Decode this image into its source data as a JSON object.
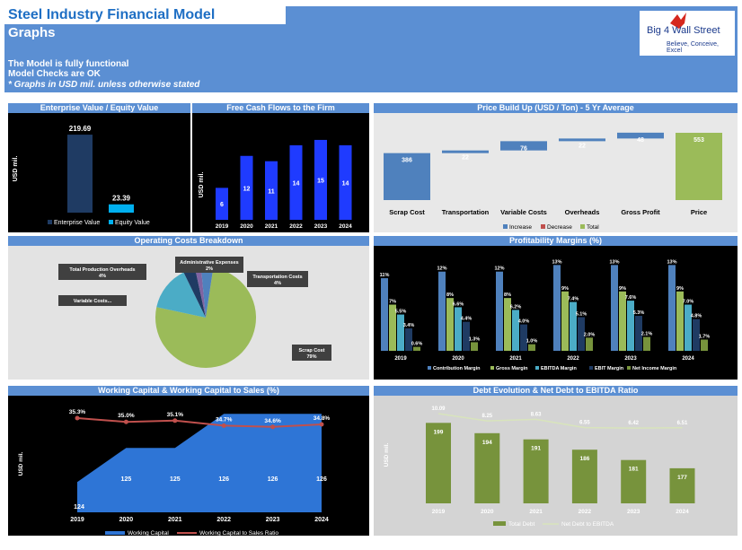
{
  "header": {
    "title": "Steel Industry Financial Model",
    "subtitle": "Graphs",
    "notes": [
      "The Model is fully functional",
      "Model Checks are OK",
      "* Graphs in USD mil. unless otherwise stated"
    ],
    "logo_text": "Big 4 Wall Street",
    "logo_tagline": "Believe, Conceive, Excel"
  },
  "colors": {
    "header_blue": "#5b8fd3",
    "dark_navy": "#1f3b63",
    "bright_blue": "#00b0f0",
    "bar_blue": "#1f3bff",
    "wf_blue": "#4f81bd",
    "wf_green": "#9bbb59",
    "area_blue": "#2e75d6",
    "line_red": "#c0504d",
    "olive": "#77933c"
  },
  "chart_data": [
    {
      "id": "ev",
      "type": "bar",
      "title": "Enterprise Value / Equity Value",
      "ylabel": "USD mil.",
      "categories": [
        "Enterprise Value",
        "Equity Value"
      ],
      "values": [
        219.69,
        23.39
      ],
      "labels": [
        "219.69",
        "23.39"
      ],
      "series_colors": [
        "#1f3b63",
        "#00b0f0"
      ],
      "legend": [
        "Enterprise Value",
        "Equity Value"
      ],
      "ylim": [
        0,
        230
      ]
    },
    {
      "id": "fcf",
      "type": "bar",
      "title": "Free Cash Flows to the Firm",
      "ylabel": "USD mil.",
      "categories": [
        "2019",
        "2020",
        "2021",
        "2022",
        "2023",
        "2024"
      ],
      "values": [
        6,
        12,
        11,
        14,
        15,
        14
      ],
      "ylim": [
        0,
        16
      ]
    },
    {
      "id": "price",
      "type": "bar",
      "title": "Price Build Up (USD / Ton) - 5 Yr Average",
      "categories": [
        "Scrap Cost",
        "Transportation",
        "Variable Costs",
        "Overheads",
        "Gross Profit",
        "Price"
      ],
      "values": [
        386,
        22,
        76,
        22,
        48,
        553
      ],
      "labels": [
        "386",
        "22",
        "76",
        "22",
        "48",
        "553"
      ],
      "kinds": [
        "increase",
        "increase",
        "increase",
        "increase",
        "increase",
        "total"
      ],
      "legend": [
        "Increase",
        "Decrease",
        "Total"
      ],
      "ylim": [
        0,
        600
      ]
    },
    {
      "id": "opcosts",
      "type": "pie",
      "title": "Operating Costs Breakdown",
      "categories": [
        "Scrap Cost",
        "Variable Costs...",
        "Total Production Overheads",
        "Administrative Expenses",
        "Transportation Costs"
      ],
      "values": [
        79,
        15,
        4,
        2,
        4
      ],
      "value_labels": [
        "79%",
        "",
        "4%",
        "2%",
        "4%"
      ],
      "colors": [
        "#9bbb59",
        "#4bacc6",
        "#1f3b63",
        "#8064a2",
        "#4f81bd"
      ]
    },
    {
      "id": "margins",
      "type": "bar",
      "title": "Profitability Margins (%)",
      "categories": [
        "2019",
        "2020",
        "2021",
        "2022",
        "2023",
        "2024"
      ],
      "series": [
        {
          "name": "Contribution Margin",
          "values": [
            11,
            12,
            12,
            13,
            13,
            13
          ],
          "color": "#4f81bd"
        },
        {
          "name": "Gross Margin",
          "values": [
            7,
            8,
            8,
            9,
            9,
            9
          ],
          "color": "#9bbb59"
        },
        {
          "name": "EBITDA Margin",
          "values": [
            5.5,
            6.6,
            6.2,
            7.4,
            7.6,
            7.0
          ],
          "color": "#4bacc6"
        },
        {
          "name": "EBIT Margin",
          "values": [
            3.4,
            4.4,
            4.0,
            5.1,
            5.3,
            4.8
          ],
          "color": "#1f3b63"
        },
        {
          "name": "Net Income Margin",
          "values": [
            0.6,
            1.3,
            1.0,
            2.0,
            2.1,
            1.7
          ],
          "color": "#77933c"
        }
      ],
      "labels": [
        [
          "11%",
          "12%",
          "12%",
          "13%",
          "13%",
          "13%"
        ],
        [
          "7%",
          "8%",
          "8%",
          "9%",
          "9%",
          "9%"
        ],
        [
          "5.5%",
          "6.6%",
          "6.2%",
          "7.4%",
          "7.6%",
          "7.0%"
        ],
        [
          "3.4%",
          "4.4%",
          "4.0%",
          "5.1%",
          "5.3%",
          "4.8%"
        ],
        [
          "0.6%",
          "1.3%",
          "1.0%",
          "2.0%",
          "2.1%",
          "1.7%"
        ]
      ],
      "ylim": [
        0,
        14
      ]
    },
    {
      "id": "wc",
      "type": "area",
      "title": "Working Capital & Working Capital to Sales (%)",
      "ylabel": "USD mil.",
      "categories": [
        "2019",
        "2020",
        "2021",
        "2022",
        "2023",
        "2024"
      ],
      "series": [
        {
          "name": "Working Capital",
          "values": [
            124,
            125,
            125,
            126,
            126,
            126
          ],
          "labels": [
            "124",
            "125",
            "125",
            "126",
            "126",
            "126"
          ]
        },
        {
          "name": "Working Capital to Sales Ratio",
          "values": [
            35.3,
            35.0,
            35.1,
            34.7,
            34.6,
            34.8
          ],
          "labels": [
            "35.3%",
            "35.0%",
            "35.1%",
            "34.7%",
            "34.6%",
            "34.8%"
          ]
        }
      ]
    },
    {
      "id": "debt",
      "type": "bar",
      "title": "Debt Evolution & Net Debt to EBITDA Ratio",
      "ylabel": "USD mil.",
      "categories": [
        "2019",
        "2020",
        "2021",
        "2022",
        "2023",
        "2024"
      ],
      "series": [
        {
          "name": "Total Debt",
          "values": [
            199,
            194,
            191,
            186,
            181,
            177
          ],
          "labels": [
            "199",
            "194",
            "191",
            "186",
            "181",
            "177"
          ]
        },
        {
          "name": "Net Debt to EBITDA",
          "values": [
            10.09,
            8.25,
            8.63,
            6.55,
            6.42,
            6.51
          ],
          "labels": [
            "10.09",
            "8.25",
            "8.63",
            "6.55",
            "6.42",
            "6.51"
          ]
        }
      ],
      "ylim": [
        160,
        205
      ]
    }
  ]
}
